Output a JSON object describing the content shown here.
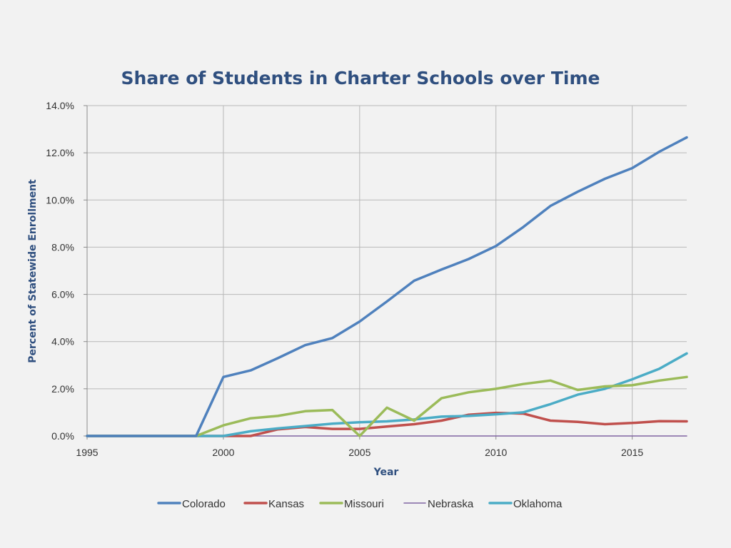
{
  "chart_data": {
    "type": "line",
    "title": "Share of Students in Charter Schools over Time",
    "xlabel": "Year",
    "ylabel": "Percent of Statewide Enrollment",
    "xlim": [
      1995,
      2017
    ],
    "ylim": [
      0,
      14
    ],
    "x_ticks": [
      {
        "value": 1995,
        "label": "1995"
      },
      {
        "value": 2000,
        "label": "2000"
      },
      {
        "value": 2005,
        "label": "2005"
      },
      {
        "value": 2010,
        "label": "2010"
      },
      {
        "value": 2015,
        "label": "2015"
      }
    ],
    "y_ticks": [
      {
        "value": 0,
        "label": "0.0%"
      },
      {
        "value": 2,
        "label": "2.0%"
      },
      {
        "value": 4,
        "label": "4.0%"
      },
      {
        "value": 6,
        "label": "6.0%"
      },
      {
        "value": 8,
        "label": "8.0%"
      },
      {
        "value": 10,
        "label": "10.0%"
      },
      {
        "value": 12,
        "label": "12.0%"
      },
      {
        "value": 14,
        "label": "14.0%"
      }
    ],
    "grid": true,
    "legend_position": "bottom",
    "x": [
      1995,
      1996,
      1997,
      1998,
      1999,
      2000,
      2001,
      2002,
      2003,
      2004,
      2005,
      2006,
      2007,
      2008,
      2009,
      2010,
      2011,
      2012,
      2013,
      2014,
      2015,
      2016,
      2017
    ],
    "series": [
      {
        "name": "Colorado",
        "color": "#4f81bd",
        "values": [
          0,
          0,
          0,
          0,
          0,
          2.5,
          2.78,
          3.3,
          3.85,
          4.15,
          4.85,
          5.7,
          6.58,
          7.05,
          7.5,
          8.05,
          8.85,
          9.75,
          10.35,
          10.9,
          11.35,
          12.05,
          12.65
        ]
      },
      {
        "name": "Kansas",
        "color": "#c0504d",
        "values": [
          0,
          0,
          0,
          0,
          0,
          0,
          0,
          0.28,
          0.38,
          0.3,
          0.3,
          0.4,
          0.5,
          0.65,
          0.9,
          0.98,
          0.95,
          0.65,
          0.6,
          0.5,
          0.55,
          0.63,
          0.62
        ]
      },
      {
        "name": "Missouri",
        "color": "#9bbb59",
        "values": [
          0,
          0,
          0,
          0,
          0,
          0.45,
          0.75,
          0.85,
          1.05,
          1.1,
          0,
          1.2,
          0.65,
          1.6,
          1.85,
          2.0,
          2.2,
          2.35,
          1.95,
          2.1,
          2.15,
          2.35,
          2.5
        ]
      },
      {
        "name": "Nebraska",
        "color": "#8064a2",
        "values": [
          0,
          0,
          0,
          0,
          0,
          0,
          0,
          0,
          0,
          0,
          0,
          0,
          0,
          0,
          0,
          0,
          0,
          0,
          0,
          0,
          0,
          0,
          0
        ]
      },
      {
        "name": "Oklahoma",
        "color": "#4bacc6",
        "values": [
          0,
          0,
          0,
          0,
          0,
          0,
          0.2,
          0.32,
          0.42,
          0.52,
          0.58,
          0.62,
          0.7,
          0.82,
          0.85,
          0.92,
          1.0,
          1.35,
          1.75,
          2.0,
          2.4,
          2.85,
          3.5
        ]
      }
    ]
  }
}
